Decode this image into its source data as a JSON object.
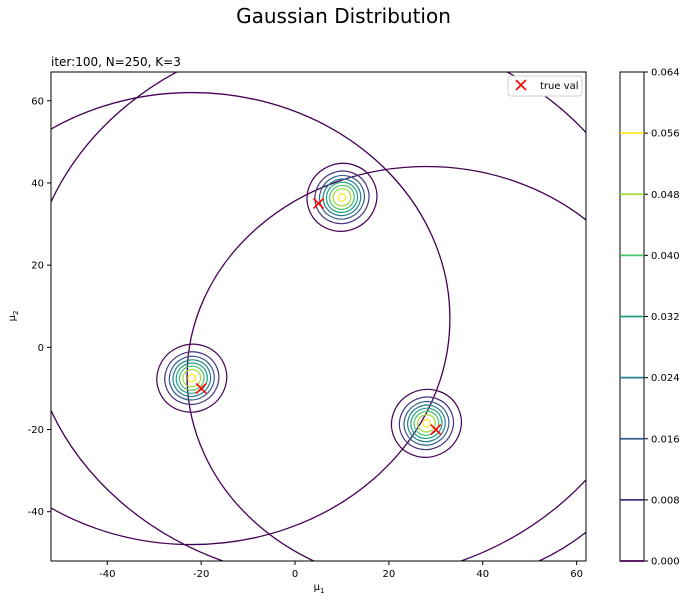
{
  "figure": {
    "suptitle": "Gaussian Distribution",
    "axes_title": "iter:100, N=250, K=3"
  },
  "chart_data": {
    "type": "contour",
    "xlabel": "μ1",
    "ylabel": "μ2",
    "xlim": [
      -52,
      62
    ],
    "ylim": [
      -52,
      67
    ],
    "xticks": [
      -40,
      -20,
      0,
      20,
      40,
      60
    ],
    "yticks": [
      -40,
      -20,
      0,
      20,
      40,
      60
    ],
    "grid": false,
    "legend": {
      "position": "top-right",
      "entries": [
        {
          "label": "true val",
          "marker": "x",
          "color": "#ff0000"
        }
      ]
    },
    "true_values": [
      {
        "x": 5,
        "y": 35
      },
      {
        "x": -20,
        "y": -10
      },
      {
        "x": 30,
        "y": -20
      }
    ],
    "components": [
      {
        "mean": [
          10,
          36.5
        ],
        "peak": 0.062
      },
      {
        "mean": [
          -22,
          -7.5
        ],
        "peak": 0.062
      },
      {
        "mean": [
          28,
          -18.5
        ],
        "peak": 0.062
      }
    ],
    "broad_components": [
      {
        "mean": [
          -22,
          7
        ],
        "radius": 55
      },
      {
        "mean": [
          28,
          -7
        ],
        "radius": 51
      },
      {
        "mean": [
          10,
          10
        ],
        "radius": 67
      }
    ],
    "colorbar": {
      "levels": [
        0.0,
        0.008,
        0.016,
        0.024,
        0.032,
        0.04,
        0.048,
        0.056,
        0.064
      ],
      "tick_labels": [
        "0.000",
        "0.008",
        "0.016",
        "0.024",
        "0.032",
        "0.040",
        "0.048",
        "0.056",
        "0.064"
      ],
      "colors": [
        "#440154",
        "#46327e",
        "#365c8d",
        "#277f8e",
        "#1fa187",
        "#4ac16d",
        "#a0da39",
        "#fde725"
      ]
    }
  }
}
